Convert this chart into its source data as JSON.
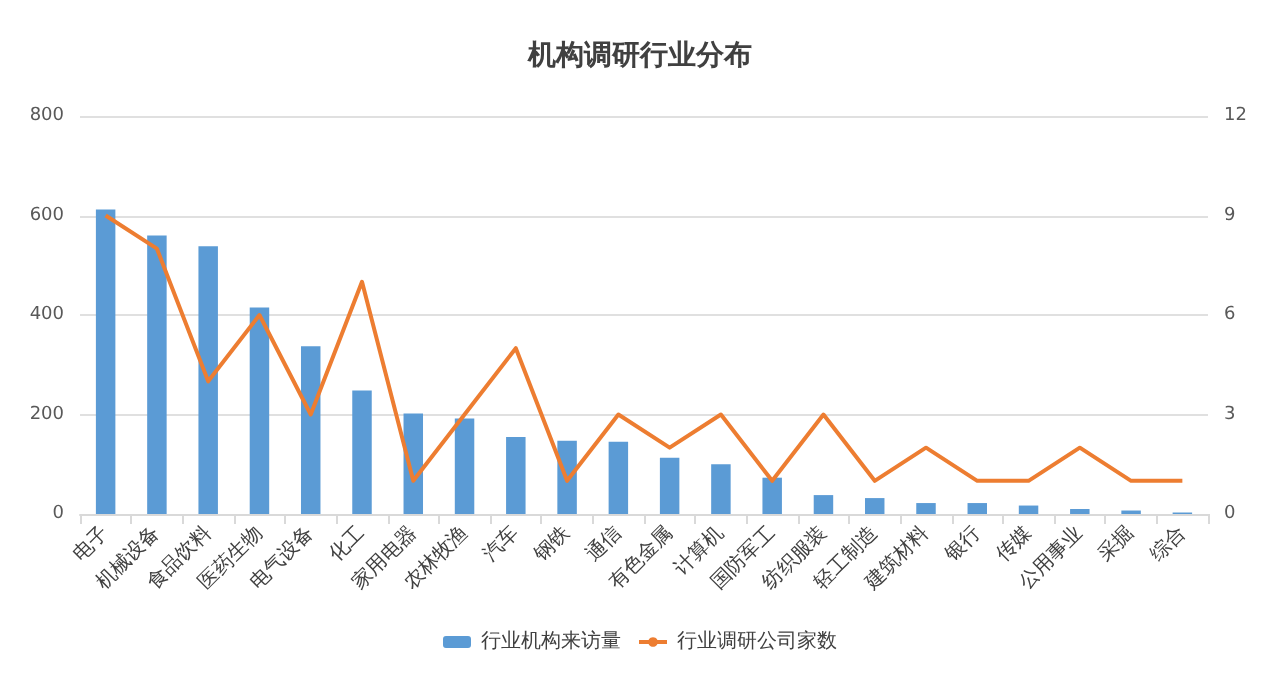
{
  "chart_data": {
    "type": "bar",
    "title": "机构调研行业分布",
    "categories": [
      "电子",
      "机械设备",
      "食品饮料",
      "医药生物",
      "电气设备",
      "化工",
      "家用电器",
      "农林牧渔",
      "汽车",
      "钢铁",
      "通信",
      "有色金属",
      "计算机",
      "国防军工",
      "纺织服装",
      "轻工制造",
      "建筑材料",
      "银行",
      "传媒",
      "公用事业",
      "采掘",
      "综合"
    ],
    "series": [
      {
        "name": "行业机构来访量",
        "color": "#5b9bd5",
        "values": [
          612,
          560,
          538,
          415,
          337,
          248,
          202,
          192,
          155,
          147,
          145,
          113,
          100,
          73,
          38,
          32,
          22,
          22,
          17,
          10,
          7,
          3
        ]
      },
      {
        "name": "行业调研公司家数",
        "type": "line",
        "axis": "y2",
        "color": "#ed7d31",
        "values": [
          9,
          8,
          4,
          6,
          3,
          7,
          1,
          3,
          5,
          1,
          3,
          2,
          3,
          1,
          3,
          1,
          2,
          1,
          1,
          2,
          1,
          1
        ]
      }
    ],
    "ylim": [
      0,
      800
    ],
    "yticks": [
      0,
      200,
      400,
      600,
      800
    ],
    "y2lim": [
      0,
      12
    ],
    "y2ticks": [
      0,
      3,
      6,
      9,
      12
    ],
    "grid": "y",
    "legend": "bottom",
    "marker": "none",
    "line_style": "solid"
  }
}
